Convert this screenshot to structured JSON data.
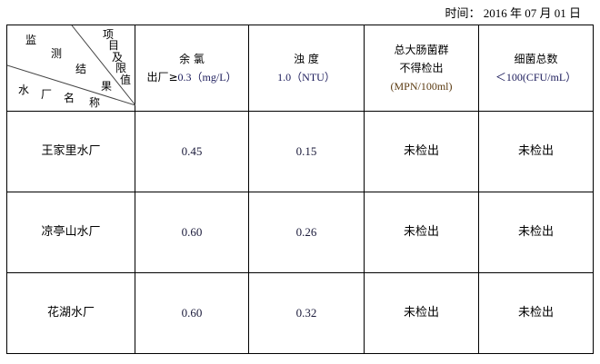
{
  "date": {
    "label": "时间：",
    "value": "2016 年 07 月 01 日"
  },
  "corner": {
    "chars_top": [
      "监",
      "测",
      "结",
      "果"
    ],
    "chars_right": [
      "项",
      "目",
      "及",
      "限",
      "值"
    ],
    "chars_bottom": [
      "水",
      "厂",
      "名",
      "称"
    ]
  },
  "columns": [
    {
      "line1": "余 氯",
      "line2": "出厂≥",
      "line2b": "0.3（mg/L）"
    },
    {
      "line1": "浊 度",
      "line2": "",
      "line2b": "1.0（NTU）"
    },
    {
      "line1": "总大肠菌群",
      "line2": "不得检出",
      "line2b": "(MPN/100ml)"
    },
    {
      "line1": "细菌总数",
      "line2": "",
      "line2b": "＜100(CFU/mL）"
    }
  ],
  "rows": [
    {
      "name": "王家里水厂",
      "chlorine": "0.45",
      "turbidity": "0.15",
      "coliform": "未检出",
      "bacteria": "未检出"
    },
    {
      "name": "凉亭山水厂",
      "chlorine": "0.60",
      "turbidity": "0.26",
      "coliform": "未检出",
      "bacteria": "未检出"
    },
    {
      "name": "花湖水厂",
      "chlorine": "0.60",
      "turbidity": "0.32",
      "coliform": "未检出",
      "bacteria": "未检出"
    }
  ]
}
